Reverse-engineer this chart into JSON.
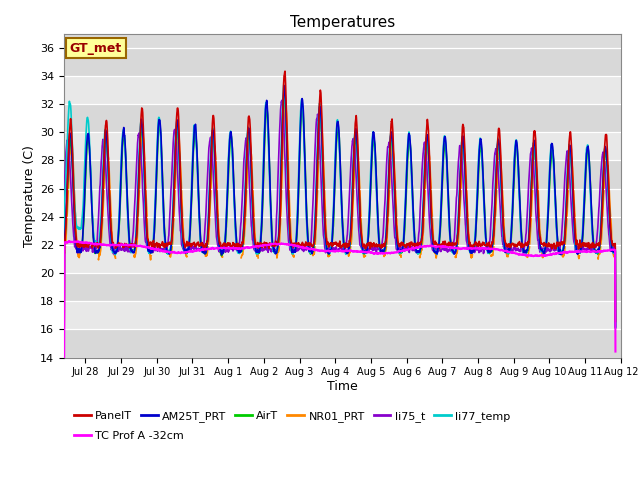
{
  "title": "Temperatures",
  "xlabel": "Time",
  "ylabel": "Temperature (C)",
  "ylim": [
    14,
    37
  ],
  "yticks": [
    14,
    16,
    18,
    20,
    22,
    24,
    26,
    28,
    30,
    32,
    34,
    36
  ],
  "series": {
    "PanelT": {
      "color": "#cc0000",
      "lw": 1.2,
      "zorder": 5
    },
    "AM25T_PRT": {
      "color": "#0000cc",
      "lw": 1.2,
      "zorder": 4
    },
    "AirT": {
      "color": "#00cc00",
      "lw": 1.2,
      "zorder": 4
    },
    "NR01_PRT": {
      "color": "#ff8800",
      "lw": 1.2,
      "zorder": 4
    },
    "li75_t": {
      "color": "#8800cc",
      "lw": 1.2,
      "zorder": 4
    },
    "li77_temp": {
      "color": "#00cccc",
      "lw": 1.2,
      "zorder": 4
    },
    "TC Prof A -32cm": {
      "color": "#ff00ff",
      "lw": 1.5,
      "zorder": 6
    }
  },
  "background_color": "#dcdcdc",
  "plot_bg_light": "#dcdcdc",
  "plot_bg_dark": "#c8c8c8",
  "gt_met_box": {
    "text": "GT_met",
    "facecolor": "#ffff99",
    "edgecolor": "#996600",
    "textcolor": "#990000"
  },
  "legend_ncol": 6,
  "legend_row2": [
    "TC Prof A -32cm"
  ],
  "figsize": [
    6.4,
    4.8
  ],
  "dpi": 100
}
